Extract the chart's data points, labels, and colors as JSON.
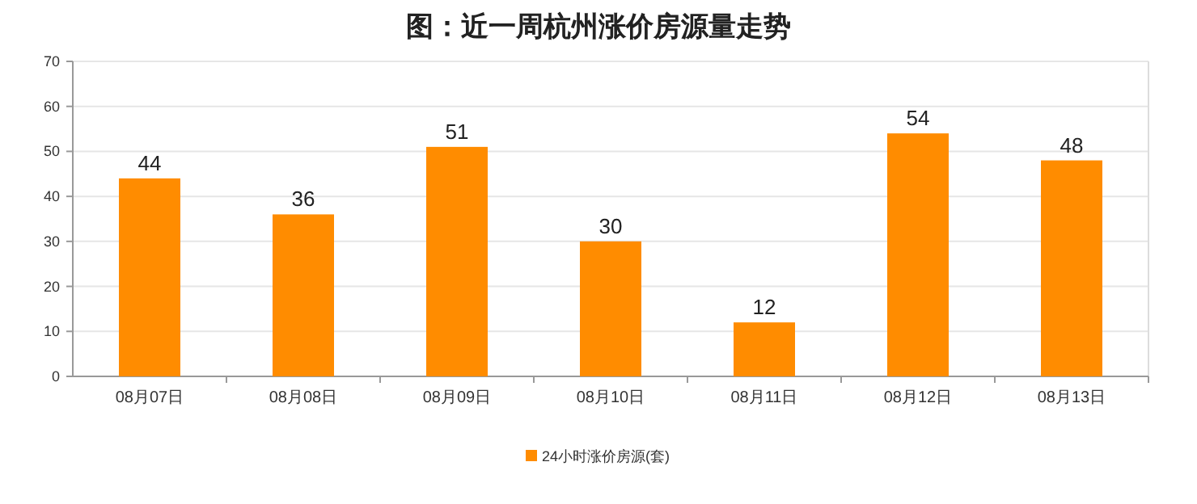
{
  "chart_data": {
    "type": "bar",
    "title": "图：近一周杭州涨价房源量走势",
    "categories": [
      "08月07日",
      "08月08日",
      "08月09日",
      "08月10日",
      "08月11日",
      "08月12日",
      "08月13日"
    ],
    "series": [
      {
        "name": "24小时涨价房源(套)",
        "color": "#ff8c00",
        "values": [
          44,
          36,
          51,
          30,
          12,
          54,
          48
        ]
      }
    ],
    "ylim": [
      0,
      70
    ],
    "yticks": [
      0,
      10,
      20,
      30,
      40,
      50,
      60,
      70
    ],
    "grid": "y",
    "legend": "bottom",
    "data_labels": true
  }
}
